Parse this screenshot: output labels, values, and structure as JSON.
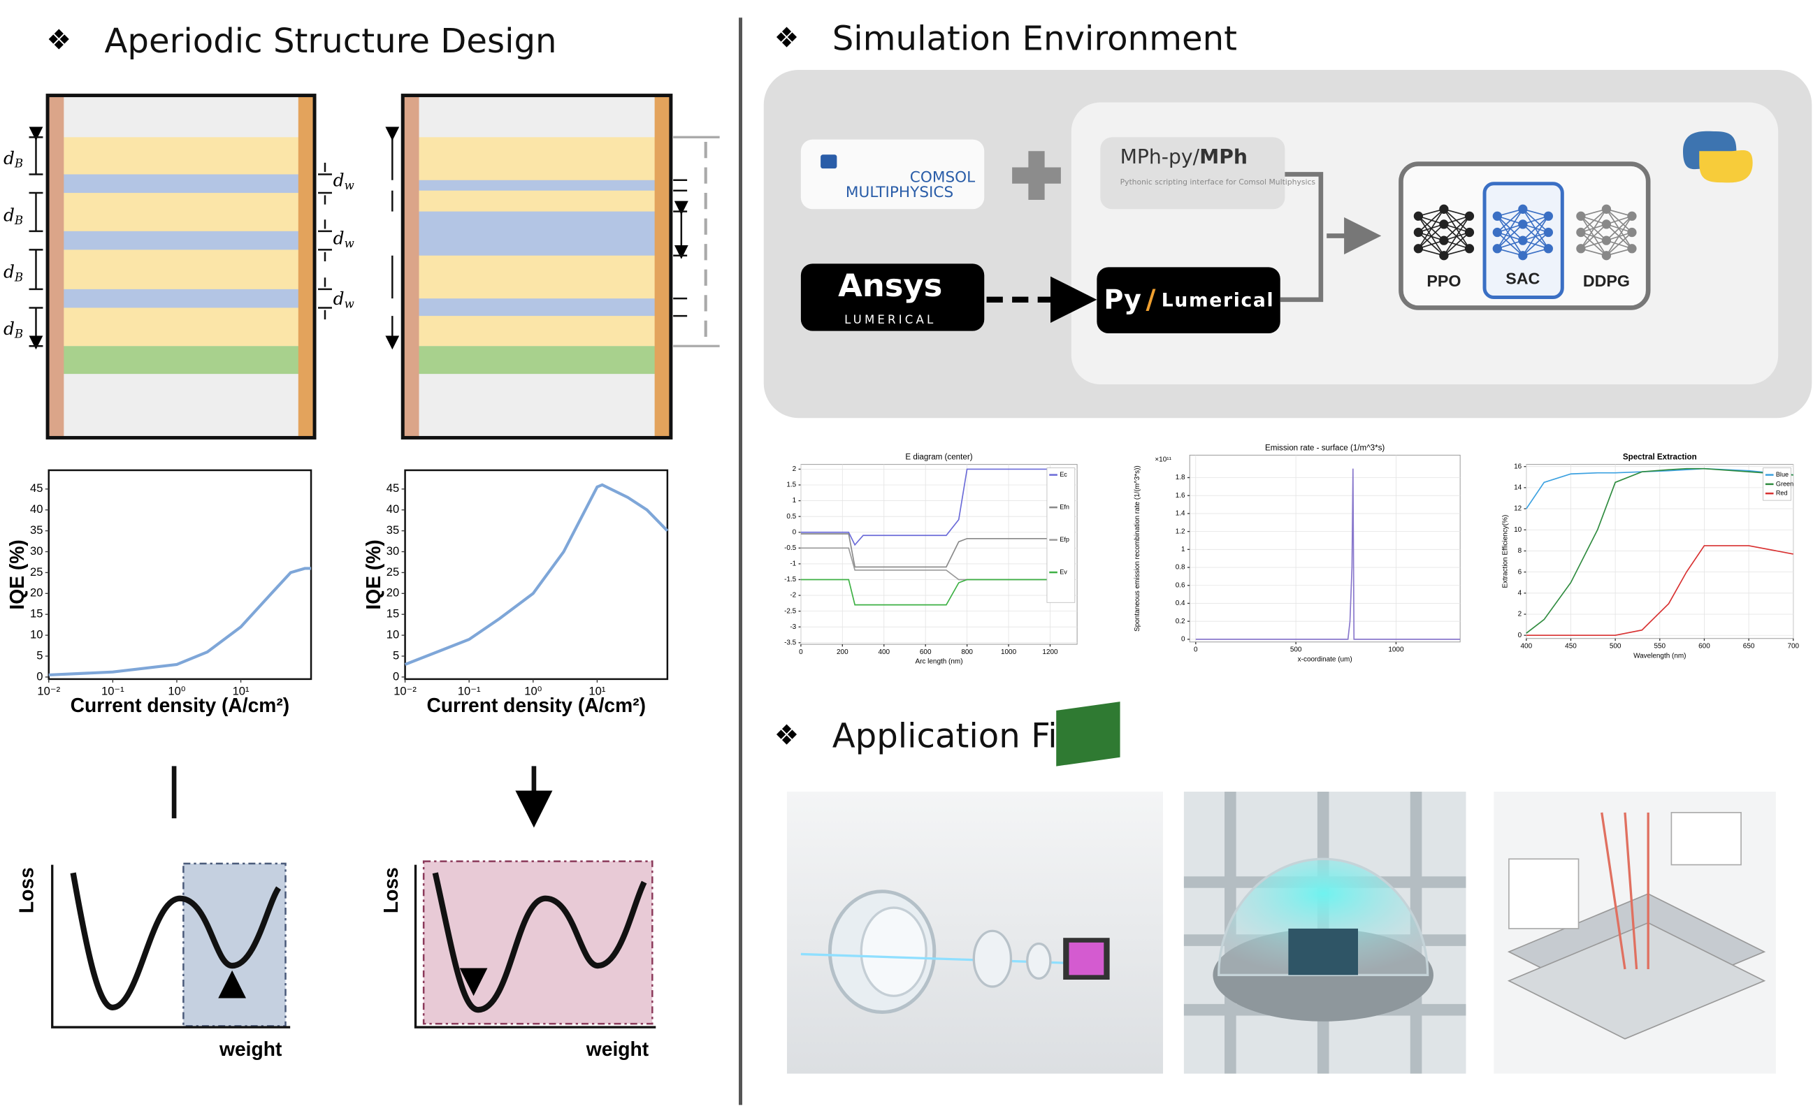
{
  "sections": {
    "structure": "Aperiodic Structure Design",
    "simulation": "Simulation Environment",
    "application": "Application Field"
  },
  "layer_labels": {
    "barrier": {
      "symbol": "d",
      "subscript": "B"
    },
    "well": {
      "symbol": "d",
      "subscript": "w"
    }
  },
  "iqe_charts": [
    {
      "type": "line",
      "ylabel": "IQE (%)",
      "xlabel": "Current density (A/cm²)",
      "xlog": true,
      "color": "#7ea6d8",
      "xlim": [
        0.01,
        125
      ],
      "ylim": [
        -0.5,
        49.5
      ],
      "xticks": [
        {
          "value": 0.01,
          "label": "10⁻²"
        },
        {
          "value": 0.1,
          "label": "10⁻¹"
        },
        {
          "value": 1,
          "label": "10⁰"
        },
        {
          "value": 10,
          "label": "10¹"
        }
      ],
      "yticks": [
        0,
        5,
        10,
        15,
        20,
        25,
        30,
        35,
        40,
        45
      ],
      "x": [
        0.01,
        0.1,
        1,
        3,
        10,
        30,
        60,
        100,
        125
      ],
      "values": [
        0.5,
        1.2,
        3,
        6,
        12,
        20,
        25,
        26,
        26
      ]
    },
    {
      "type": "line",
      "ylabel": "IQE (%)",
      "xlabel": "Current density (A/cm²)",
      "xlog": true,
      "color": "#7ea6d8",
      "xlim": [
        0.01,
        125
      ],
      "ylim": [
        -0.5,
        49.5
      ],
      "xticks": [
        {
          "value": 0.01,
          "label": "10⁻²"
        },
        {
          "value": 0.1,
          "label": "10⁻¹"
        },
        {
          "value": 1,
          "label": "10⁰"
        },
        {
          "value": 10,
          "label": "10¹"
        }
      ],
      "yticks": [
        0,
        5,
        10,
        15,
        20,
        25,
        30,
        35,
        40,
        45
      ],
      "x": [
        0.01,
        0.1,
        0.3,
        1,
        3,
        10,
        12,
        30,
        60,
        125
      ],
      "values": [
        3,
        9,
        14,
        20,
        30,
        45.5,
        46,
        43,
        40,
        35
      ]
    }
  ],
  "loss": {
    "ylabel": "Loss",
    "xlabel": "weight"
  },
  "tools": {
    "comsol": "COMSOL",
    "multiphysics": "MULTIPHYSICS",
    "mph_prefix": "MPh-py/",
    "mph_bold": "MPh",
    "mph_subtitle": "Pythonic scripting interface for Comsol Multiphysics",
    "ansys": "Ansys",
    "lumerical_caps": "LUMERICAL",
    "py": "Py",
    "slash": "/",
    "lumerical": "Lumerical"
  },
  "algorithms": [
    "PPO",
    "SAC",
    "DDPG"
  ],
  "sim_plots": [
    {
      "type": "line",
      "title": "E diagram (center)",
      "xlabel": "Arc length (nm)",
      "xlim": [
        0,
        1330
      ],
      "ylim": [
        -3.55,
        2.15
      ],
      "xticks": [
        0,
        200,
        400,
        600,
        800,
        1000,
        1200
      ],
      "yticks": [
        2,
        1.5,
        1,
        0.5,
        0,
        -0.5,
        -1,
        -1.5,
        -2,
        -2.5,
        -3,
        -3.5
      ],
      "x": [
        0,
        230,
        260,
        300,
        700,
        760,
        800,
        1300
      ],
      "series": [
        {
          "name": "Ec",
          "color": "#6a6ad8",
          "values": [
            0,
            0,
            -0.4,
            -0.1,
            -0.1,
            0.4,
            2,
            2
          ]
        },
        {
          "name": "Efn",
          "color": "#888888",
          "values": [
            -0.05,
            -0.05,
            -1.1,
            -1.1,
            -1.1,
            -0.3,
            -0.2,
            -0.2
          ]
        },
        {
          "name": "Efp",
          "color": "#9a9a9a",
          "values": [
            -0.5,
            -0.5,
            -1.2,
            -1.2,
            -1.2,
            -1.5,
            -1.5,
            -1.5
          ]
        },
        {
          "name": "Ev",
          "color": "#3cb043",
          "values": [
            -1.5,
            -1.5,
            -2.3,
            -2.3,
            -2.3,
            -1.6,
            -1.5,
            -1.5
          ]
        }
      ]
    },
    {
      "type": "line",
      "title": "Emission rate - surface (1/m^3*s)",
      "xlabel": "x-coordinate (um)",
      "ylabel": "Spontaneous emission recombination rate (1/(m^3*s))",
      "y_multiplier": "×10¹¹",
      "xlim": [
        -30,
        1320
      ],
      "ylim": [
        -0.03,
        2.05
      ],
      "xticks": [
        0,
        500,
        1000
      ],
      "yticks": [
        0,
        0.2,
        0.4,
        0.6,
        0.8,
        1,
        1.2,
        1.4,
        1.6,
        1.8
      ],
      "color": "#8877cc",
      "x": [
        0,
        760,
        770,
        780,
        785,
        790,
        1320
      ],
      "values": [
        0,
        0,
        0.2,
        0.8,
        1.9,
        0,
        0
      ]
    },
    {
      "type": "line",
      "title": "Spectral Extraction",
      "xlabel": "Wavelength (nm)",
      "ylabel": "Extraction Efficiency(%)",
      "xlim": [
        400,
        700
      ],
      "ylim": [
        -0.3,
        16.2
      ],
      "xticks": [
        400,
        450,
        500,
        550,
        600,
        650,
        700
      ],
      "yticks": [
        0,
        2,
        4,
        6,
        8,
        10,
        12,
        14,
        16
      ],
      "x": [
        400,
        420,
        450,
        480,
        500,
        530,
        560,
        580,
        600,
        650,
        700
      ],
      "series": [
        {
          "name": "Blue",
          "color": "#3aa0e0",
          "values": [
            12,
            14.5,
            15.3,
            15.4,
            15.4,
            15.5,
            15.6,
            15.7,
            15.8,
            15.6,
            15.2
          ]
        },
        {
          "name": "Green",
          "color": "#2e8b3e",
          "values": [
            0.2,
            1.5,
            5,
            10,
            14.5,
            15.5,
            15.7,
            15.8,
            15.8,
            15.5,
            15.2
          ]
        },
        {
          "name": "Red",
          "color": "#d83030",
          "values": [
            0,
            0,
            0,
            0,
            0,
            0.5,
            3,
            6,
            8.5,
            8.5,
            7.7
          ]
        }
      ]
    }
  ]
}
